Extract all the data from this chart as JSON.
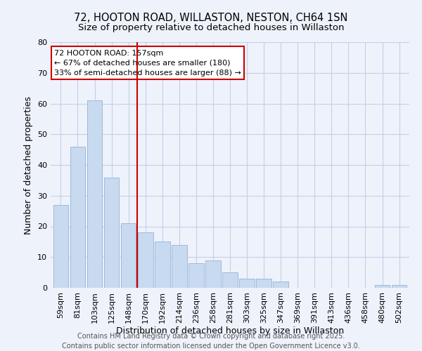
{
  "title": "72, HOOTON ROAD, WILLASTON, NESTON, CH64 1SN",
  "subtitle": "Size of property relative to detached houses in Willaston",
  "categories": [
    "59sqm",
    "81sqm",
    "103sqm",
    "125sqm",
    "148sqm",
    "170sqm",
    "192sqm",
    "214sqm",
    "236sqm",
    "258sqm",
    "281sqm",
    "303sqm",
    "325sqm",
    "347sqm",
    "369sqm",
    "391sqm",
    "413sqm",
    "436sqm",
    "458sqm",
    "480sqm",
    "502sqm"
  ],
  "values": [
    27,
    46,
    61,
    36,
    21,
    18,
    15,
    14,
    8,
    9,
    5,
    3,
    3,
    2,
    0,
    0,
    0,
    0,
    0,
    1,
    1
  ],
  "bar_color": "#c8daf0",
  "bar_edge_color": "#a0b8d8",
  "bg_color": "#eef2fb",
  "grid_color": "#c5cfe8",
  "vline_x": 4.5,
  "vline_color": "#cc0000",
  "annotation_text": "72 HOOTON ROAD: 157sqm\n← 67% of detached houses are smaller (180)\n33% of semi-detached houses are larger (88) →",
  "annotation_box_color": "#ffffff",
  "annotation_box_edge": "#cc0000",
  "xlabel": "Distribution of detached houses by size in Willaston",
  "ylabel": "Number of detached properties",
  "footer1": "Contains HM Land Registry data © Crown copyright and database right 2025.",
  "footer2": "Contains public sector information licensed under the Open Government Licence v3.0.",
  "ylim": [
    0,
    80
  ],
  "yticks": [
    0,
    10,
    20,
    30,
    40,
    50,
    60,
    70,
    80
  ],
  "title_fontsize": 10.5,
  "subtitle_fontsize": 9.5,
  "axis_label_fontsize": 9,
  "tick_fontsize": 8,
  "annotation_fontsize": 8,
  "footer_fontsize": 7
}
